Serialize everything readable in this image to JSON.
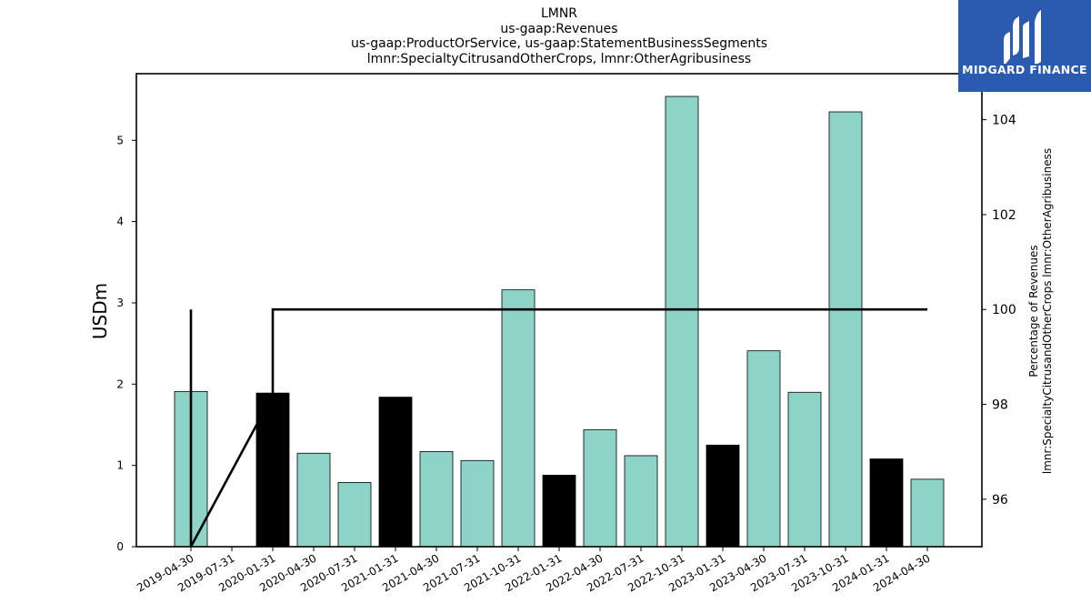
{
  "chart_data": {
    "type": "bar",
    "title": [
      "LMNR",
      "us-gaap:Revenues",
      "us-gaap:ProductOrService, us-gaap:StatementBusinessSegments",
      "lmnr:SpecialtyCitrusandOtherCrops, lmnr:OtherAgribusiness"
    ],
    "ylabel": "USDm",
    "y2label": [
      "Percentage of Revenues",
      "lmnr:SpecialtyCitrusandOtherCrops lmnr:OtherAgribusiness"
    ],
    "categories": [
      "2019-04-30",
      "2019-07-31",
      "2020-01-31",
      "2020-04-30",
      "2020-07-31",
      "2021-01-31",
      "2021-04-30",
      "2021-07-31",
      "2021-10-31",
      "2022-01-31",
      "2022-04-30",
      "2022-07-31",
      "2022-10-31",
      "2023-01-31",
      "2023-04-30",
      "2023-07-31",
      "2023-10-31",
      "2024-01-31",
      "2024-04-30"
    ],
    "values": [
      1.91,
      null,
      1.89,
      1.15,
      0.79,
      1.84,
      1.17,
      1.06,
      3.16,
      0.88,
      1.44,
      1.12,
      5.54,
      1.25,
      2.41,
      1.9,
      5.35,
      1.08,
      0.83
    ],
    "bar_colors": [
      "#8dd3c7",
      null,
      "#000000",
      "#8dd3c7",
      "#8dd3c7",
      "#000000",
      "#8dd3c7",
      "#8dd3c7",
      "#8dd3c7",
      "#000000",
      "#8dd3c7",
      "#8dd3c7",
      "#8dd3c7",
      "#000000",
      "#8dd3c7",
      "#8dd3c7",
      "#8dd3c7",
      "#000000",
      "#8dd3c7"
    ],
    "line_series": {
      "axis": "right",
      "points": [
        {
          "x": "2019-04-30",
          "y": 100
        },
        {
          "x": "2019-04-30",
          "y": 95
        },
        {
          "x": "2020-01-31",
          "y": 98.2
        },
        {
          "x": "2020-01-31",
          "y": 100
        },
        {
          "x": "2024-04-30",
          "y": 100
        }
      ]
    },
    "ylim": [
      0,
      5.82
    ],
    "yticks": [
      0,
      1,
      2,
      3,
      4,
      5
    ],
    "y2lim": [
      95,
      104.97
    ],
    "y2ticks": [
      96,
      98,
      100,
      102,
      104
    ],
    "grid": false
  },
  "logo": {
    "text": "MIDGARD FINANCE"
  }
}
